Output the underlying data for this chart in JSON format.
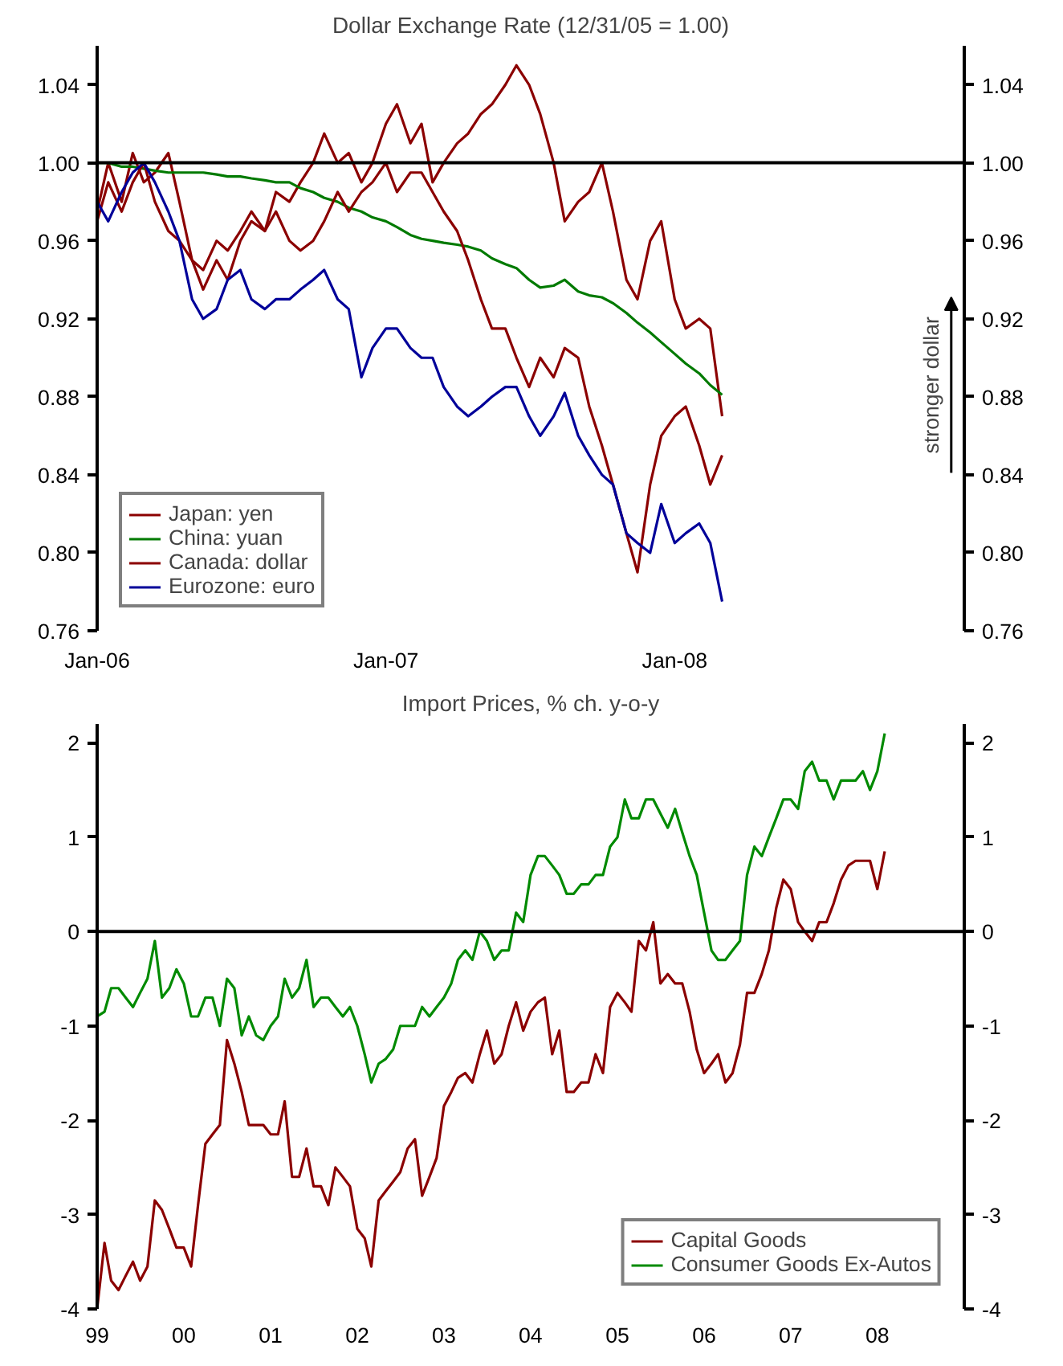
{
  "chart_data": [
    {
      "type": "line",
      "title": "Dollar Exchange Rate (12/31/05 = 1.00)",
      "x": [
        "2006-01-01",
        "2006-01-15",
        "2006-02-01",
        "2006-02-15",
        "2006-03-01",
        "2006-03-15",
        "2006-04-01",
        "2006-04-15",
        "2006-05-01",
        "2006-05-15",
        "2006-06-01",
        "2006-06-15",
        "2006-07-01",
        "2006-07-15",
        "2006-08-01",
        "2006-08-15",
        "2006-09-01",
        "2006-09-15",
        "2006-10-01",
        "2006-10-15",
        "2006-11-01",
        "2006-11-15",
        "2006-12-01",
        "2006-12-15",
        "2007-01-01",
        "2007-01-15",
        "2007-02-01",
        "2007-02-15",
        "2007-03-01",
        "2007-03-15",
        "2007-04-01",
        "2007-04-15",
        "2007-05-01",
        "2007-05-15",
        "2007-06-01",
        "2007-06-15",
        "2007-07-01",
        "2007-07-15",
        "2007-08-01",
        "2007-08-15",
        "2007-09-01",
        "2007-09-15",
        "2007-10-01",
        "2007-10-15",
        "2007-11-01",
        "2007-11-15",
        "2007-12-01",
        "2007-12-15",
        "2008-01-01",
        "2008-01-15",
        "2008-02-01",
        "2008-02-15",
        "2008-03-01"
      ],
      "series": [
        {
          "name": "Japan: yen",
          "color": "#8b0000",
          "values": [
            0.975,
            1.0,
            0.98,
            1.005,
            0.99,
            0.995,
            1.005,
            0.98,
            0.95,
            0.935,
            0.95,
            0.94,
            0.96,
            0.97,
            0.965,
            0.985,
            0.98,
            0.99,
            1.0,
            1.015,
            1.0,
            1.005,
            0.99,
            1.0,
            1.02,
            1.03,
            1.01,
            1.02,
            0.99,
            1.0,
            1.01,
            1.015,
            1.025,
            1.03,
            1.04,
            1.05,
            1.04,
            1.025,
            1.0,
            0.97,
            0.98,
            0.985,
            1.0,
            0.975,
            0.94,
            0.93,
            0.96,
            0.97,
            0.93,
            0.915,
            0.92,
            0.915,
            0.87
          ]
        },
        {
          "name": "China: yuan",
          "color": "#007a00",
          "values": [
            1.0,
            1.0,
            0.998,
            0.998,
            0.997,
            0.996,
            0.995,
            0.995,
            0.995,
            0.995,
            0.994,
            0.993,
            0.993,
            0.992,
            0.991,
            0.99,
            0.99,
            0.987,
            0.985,
            0.982,
            0.98,
            0.977,
            0.975,
            0.972,
            0.97,
            0.967,
            0.963,
            0.961,
            0.96,
            0.959,
            0.958,
            0.957,
            0.955,
            0.951,
            0.948,
            0.946,
            0.94,
            0.936,
            0.937,
            0.94,
            0.934,
            0.932,
            0.931,
            0.928,
            0.923,
            0.918,
            0.913,
            0.908,
            0.902,
            0.897,
            0.892,
            0.886,
            0.881
          ]
        },
        {
          "name": "Canada: dollar",
          "color": "#8b0000",
          "values": [
            0.97,
            0.99,
            0.975,
            0.99,
            1.0,
            0.98,
            0.965,
            0.96,
            0.95,
            0.945,
            0.96,
            0.955,
            0.965,
            0.975,
            0.965,
            0.975,
            0.96,
            0.955,
            0.96,
            0.97,
            0.985,
            0.975,
            0.985,
            0.99,
            1.0,
            0.985,
            0.995,
            0.995,
            0.985,
            0.975,
            0.965,
            0.95,
            0.93,
            0.915,
            0.915,
            0.9,
            0.885,
            0.9,
            0.89,
            0.905,
            0.9,
            0.875,
            0.855,
            0.835,
            0.81,
            0.79,
            0.835,
            0.86,
            0.87,
            0.875,
            0.855,
            0.835,
            0.85
          ]
        },
        {
          "name": "Eurozone: euro",
          "color": "#000099",
          "values": [
            0.98,
            0.97,
            0.985,
            0.995,
            1.0,
            0.99,
            0.975,
            0.96,
            0.93,
            0.92,
            0.925,
            0.94,
            0.945,
            0.93,
            0.925,
            0.93,
            0.93,
            0.935,
            0.94,
            0.945,
            0.93,
            0.925,
            0.89,
            0.905,
            0.915,
            0.915,
            0.905,
            0.9,
            0.9,
            0.885,
            0.875,
            0.87,
            0.875,
            0.88,
            0.885,
            0.885,
            0.87,
            0.86,
            0.87,
            0.882,
            0.86,
            0.85,
            0.84,
            0.835,
            0.81,
            0.805,
            0.8,
            0.825,
            0.805,
            0.81,
            0.815,
            0.805,
            0.775
          ]
        }
      ],
      "xlim": [
        "2006-01-01",
        "2009-01-01"
      ],
      "xticks": [
        {
          "value": "2006-01-01",
          "label": "Jan-06"
        },
        {
          "value": "2007-01-01",
          "label": "Jan-07"
        },
        {
          "value": "2008-01-01",
          "label": "Jan-08"
        }
      ],
      "ylim": [
        0.76,
        1.06
      ],
      "yticks": [
        {
          "value": 0.76,
          "label": "0.76"
        },
        {
          "value": 0.8,
          "label": "0.80"
        },
        {
          "value": 0.84,
          "label": "0.84"
        },
        {
          "value": 0.88,
          "label": "0.88"
        },
        {
          "value": 0.92,
          "label": "0.92"
        },
        {
          "value": 0.96,
          "label": "0.96"
        },
        {
          "value": 1.0,
          "label": "1.00"
        },
        {
          "value": 1.04,
          "label": "1.04"
        }
      ],
      "y2lim": [
        0.76,
        1.06
      ],
      "y2ticks": [
        {
          "value": 0.76,
          "label": "0.76"
        },
        {
          "value": 0.8,
          "label": "0.80"
        },
        {
          "value": 0.84,
          "label": "0.84"
        },
        {
          "value": 0.88,
          "label": "0.88"
        },
        {
          "value": 0.92,
          "label": "0.92"
        },
        {
          "value": 0.96,
          "label": "0.96"
        },
        {
          "value": 1.0,
          "label": "1.00"
        },
        {
          "value": 1.04,
          "label": "1.04"
        }
      ],
      "ref_lines": [
        {
          "axis": "y",
          "value": 1.0,
          "color": "#000000"
        }
      ],
      "annotations": [
        "stronger dollar"
      ],
      "legend": "bottom left"
    },
    {
      "type": "line",
      "title": "Import Prices, % ch. y-o-y",
      "x": [
        "1999-01",
        "1999-02",
        "1999-03",
        "1999-04",
        "1999-05",
        "1999-06",
        "1999-07",
        "1999-08",
        "1999-09",
        "1999-10",
        "1999-11",
        "1999-12",
        "2000-01",
        "2000-02",
        "2000-03",
        "2000-04",
        "2000-05",
        "2000-06",
        "2000-07",
        "2000-08",
        "2000-09",
        "2000-10",
        "2000-11",
        "2000-12",
        "2001-01",
        "2001-02",
        "2001-03",
        "2001-04",
        "2001-05",
        "2001-06",
        "2001-07",
        "2001-08",
        "2001-09",
        "2001-10",
        "2001-11",
        "2001-12",
        "2002-01",
        "2002-02",
        "2002-03",
        "2002-04",
        "2002-05",
        "2002-06",
        "2002-07",
        "2002-08",
        "2002-09",
        "2002-10",
        "2002-11",
        "2002-12",
        "2003-01",
        "2003-02",
        "2003-03",
        "2003-04",
        "2003-05",
        "2003-06",
        "2003-07",
        "2003-08",
        "2003-09",
        "2003-10",
        "2003-11",
        "2003-12",
        "2004-01",
        "2004-02",
        "2004-03",
        "2004-04",
        "2004-05",
        "2004-06",
        "2004-07",
        "2004-08",
        "2004-09",
        "2004-10",
        "2004-11",
        "2004-12",
        "2005-01",
        "2005-02",
        "2005-03",
        "2005-04",
        "2005-05",
        "2005-06",
        "2005-07",
        "2005-08",
        "2005-09",
        "2005-10",
        "2005-11",
        "2005-12",
        "2006-01",
        "2006-02",
        "2006-03",
        "2006-04",
        "2006-05",
        "2006-06",
        "2006-07",
        "2006-08",
        "2006-09",
        "2006-10",
        "2006-11",
        "2006-12",
        "2007-01",
        "2007-02",
        "2007-03",
        "2007-04",
        "2007-05",
        "2007-06",
        "2007-07",
        "2007-08",
        "2007-09",
        "2007-10",
        "2007-11",
        "2007-12",
        "2008-01",
        "2008-02"
      ],
      "series": [
        {
          "name": "Capital Goods",
          "color": "#8b0000",
          "values": [
            -4.0,
            -3.3,
            -3.7,
            -3.8,
            -3.65,
            -3.5,
            -3.7,
            -3.55,
            -2.85,
            -2.95,
            -3.15,
            -3.35,
            -3.35,
            -3.55,
            -2.9,
            -2.25,
            -2.15,
            -2.05,
            -1.15,
            -1.4,
            -1.7,
            -2.05,
            -2.05,
            -2.05,
            -2.15,
            -2.15,
            -1.8,
            -2.6,
            -2.6,
            -2.3,
            -2.7,
            -2.7,
            -2.9,
            -2.5,
            -2.6,
            -2.7,
            -3.15,
            -3.25,
            -3.55,
            -2.85,
            -2.75,
            -2.65,
            -2.55,
            -2.3,
            -2.2,
            -2.8,
            -2.6,
            -2.4,
            -1.85,
            -1.7,
            -1.55,
            -1.5,
            -1.6,
            -1.3,
            -1.05,
            -1.4,
            -1.3,
            -1.0,
            -0.75,
            -1.05,
            -0.85,
            -0.75,
            -0.7,
            -1.3,
            -1.05,
            -1.7,
            -1.7,
            -1.6,
            -1.6,
            -1.3,
            -1.5,
            -0.8,
            -0.65,
            -0.75,
            -0.85,
            -0.1,
            -0.2,
            0.1,
            -0.55,
            -0.45,
            -0.55,
            -0.55,
            -0.85,
            -1.25,
            -1.5,
            -1.4,
            -1.3,
            -1.6,
            -1.5,
            -1.2,
            -0.65,
            -0.65,
            -0.45,
            -0.2,
            0.25,
            0.55,
            0.45,
            0.1,
            0.0,
            -0.1,
            0.1,
            0.1,
            0.3,
            0.55,
            0.7,
            0.75,
            0.75,
            0.75,
            0.45,
            0.85
          ]
        },
        {
          "name": "Consumer Goods Ex-Autos",
          "color": "#008a00",
          "values": [
            -0.9,
            -0.85,
            -0.6,
            -0.6,
            -0.7,
            -0.8,
            -0.65,
            -0.5,
            -0.1,
            -0.7,
            -0.6,
            -0.4,
            -0.55,
            -0.9,
            -0.9,
            -0.7,
            -0.7,
            -1.0,
            -0.5,
            -0.6,
            -1.1,
            -0.9,
            -1.1,
            -1.15,
            -1.0,
            -0.9,
            -0.5,
            -0.7,
            -0.6,
            -0.3,
            -0.8,
            -0.7,
            -0.7,
            -0.8,
            -0.9,
            -0.8,
            -1.0,
            -1.3,
            -1.6,
            -1.4,
            -1.35,
            -1.25,
            -1.0,
            -1.0,
            -1.0,
            -0.8,
            -0.9,
            -0.8,
            -0.7,
            -0.55,
            -0.3,
            -0.2,
            -0.3,
            0.0,
            -0.1,
            -0.3,
            -0.2,
            -0.2,
            0.2,
            0.1,
            0.6,
            0.8,
            0.8,
            0.7,
            0.6,
            0.4,
            0.4,
            0.5,
            0.5,
            0.6,
            0.6,
            0.9,
            1.0,
            1.4,
            1.2,
            1.2,
            1.4,
            1.4,
            1.25,
            1.1,
            1.3,
            1.05,
            0.8,
            0.6,
            0.2,
            -0.2,
            -0.3,
            -0.3,
            -0.2,
            -0.1,
            0.6,
            0.9,
            0.8,
            1.0,
            1.2,
            1.4,
            1.4,
            1.3,
            1.7,
            1.8,
            1.6,
            1.6,
            1.4,
            1.6,
            1.6,
            1.6,
            1.7,
            1.5,
            1.7,
            2.1
          ]
        }
      ],
      "xlim": [
        "1999-01",
        "2009-01"
      ],
      "xticks": [
        {
          "value": "1999-01",
          "label": "99"
        },
        {
          "value": "2000-01",
          "label": "00"
        },
        {
          "value": "2001-01",
          "label": "01"
        },
        {
          "value": "2002-01",
          "label": "02"
        },
        {
          "value": "2003-01",
          "label": "03"
        },
        {
          "value": "2004-01",
          "label": "04"
        },
        {
          "value": "2005-01",
          "label": "05"
        },
        {
          "value": "2006-01",
          "label": "06"
        },
        {
          "value": "2007-01",
          "label": "07"
        },
        {
          "value": "2008-01",
          "label": "08"
        }
      ],
      "ylim": [
        -4,
        2.2
      ],
      "yticks": [
        -4,
        -3,
        -2,
        -1,
        0,
        1,
        2
      ],
      "y2lim": [
        -4,
        2.2
      ],
      "y2ticks": [
        -4,
        -3,
        -2,
        -1,
        0,
        1,
        2
      ],
      "ref_lines": [
        {
          "axis": "y",
          "value": 0,
          "color": "#000000"
        }
      ],
      "legend": "bottom right"
    }
  ]
}
